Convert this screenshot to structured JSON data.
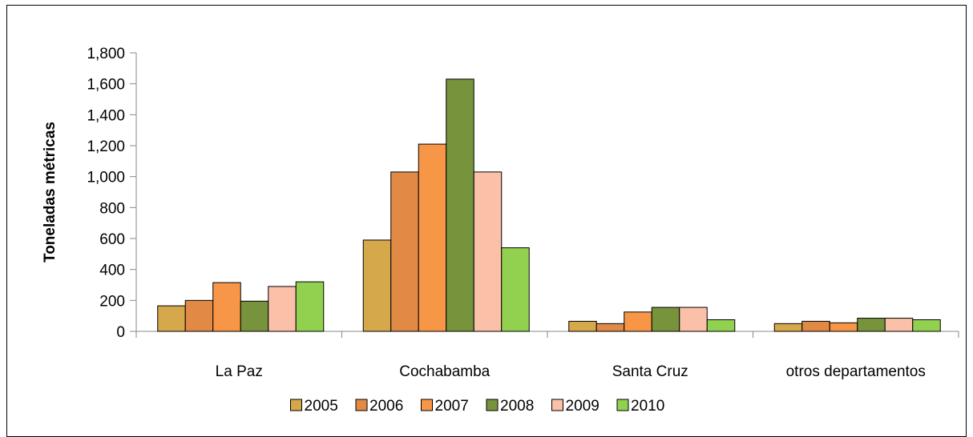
{
  "chart_data": {
    "type": "bar",
    "ylabel": "Toneladas métricas",
    "xlabel": "",
    "ylim": [
      0,
      1800
    ],
    "yticks": [
      0,
      200,
      400,
      600,
      800,
      1000,
      1200,
      1400,
      1600,
      1800
    ],
    "ytick_labels": [
      "0",
      "200",
      "400",
      "600",
      "800",
      "1,000",
      "1,200",
      "1,400",
      "1,600",
      "1,800"
    ],
    "categories": [
      "La Paz",
      "Cochabamba",
      "Santa Cruz",
      "otros departamentos"
    ],
    "legend_position": "bottom",
    "grid": false,
    "series": [
      {
        "name": "2005",
        "color": "#D4A84B",
        "values": [
          165,
          590,
          65,
          50
        ]
      },
      {
        "name": "2006",
        "color": "#E08A45",
        "values": [
          200,
          1030,
          50,
          65
        ]
      },
      {
        "name": "2007",
        "color": "#F79646",
        "values": [
          315,
          1210,
          125,
          55
        ]
      },
      {
        "name": "2008",
        "color": "#77933C",
        "values": [
          195,
          1630,
          155,
          85
        ]
      },
      {
        "name": "2009",
        "color": "#FAC0A8",
        "values": [
          290,
          1030,
          155,
          85
        ]
      },
      {
        "name": "2010",
        "color": "#92D050",
        "values": [
          320,
          540,
          75,
          75
        ]
      }
    ]
  }
}
